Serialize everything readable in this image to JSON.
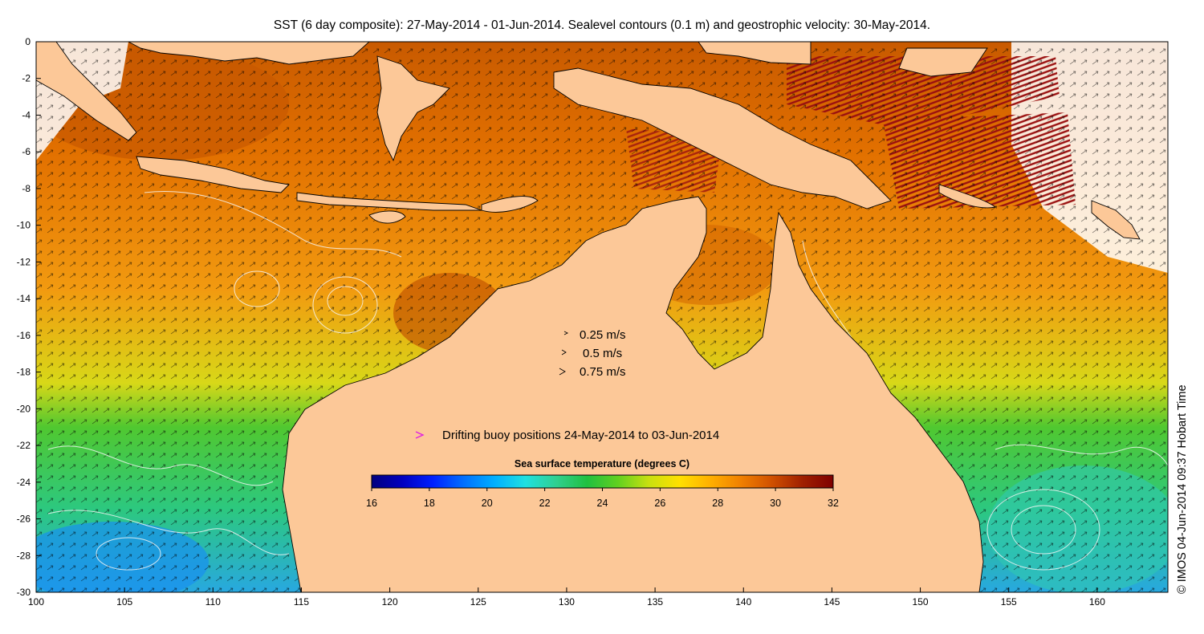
{
  "title": "SST (6 day composite): 27-May-2014 - 01-Jun-2014. Sealevel contours (0.1 m) and geostrophic velocity: 30-May-2014.",
  "credit": "© IMOS 04-Jun-2014 09:37 Hobart Time",
  "axes": {
    "x_ticks": [
      "100",
      "105",
      "110",
      "115",
      "120",
      "125",
      "130",
      "135",
      "140",
      "145",
      "150",
      "155",
      "160"
    ],
    "y_ticks": [
      "0",
      "-2",
      "-4",
      "-6",
      "-8",
      "-10",
      "-12",
      "-14",
      "-16",
      "-18",
      "-20",
      "-22",
      "-24",
      "-26",
      "-28",
      "-30"
    ]
  },
  "velocity_legend": [
    {
      "label": "0.25 m/s"
    },
    {
      "label": "0.5 m/s"
    },
    {
      "label": "0.75 m/s"
    }
  ],
  "buoy_legend": {
    "label": "Drifting buoy positions 24-May-2014 to 03-Jun-2014",
    "color": "#e020e0"
  },
  "colorbar": {
    "title": "Sea surface temperature (degrees C)",
    "ticks": [
      "16",
      "18",
      "20",
      "22",
      "24",
      "26",
      "28",
      "30",
      "32"
    ],
    "colors": [
      "#00007f",
      "#0000c0",
      "#0020ff",
      "#0070ff",
      "#00b0ff",
      "#20e0e0",
      "#30d090",
      "#20c040",
      "#60d020",
      "#c8e010",
      "#ffe000",
      "#ffb000",
      "#f08000",
      "#d05000",
      "#a02000",
      "#7f0000"
    ]
  },
  "map": {
    "land_color": "#fcc898"
  }
}
